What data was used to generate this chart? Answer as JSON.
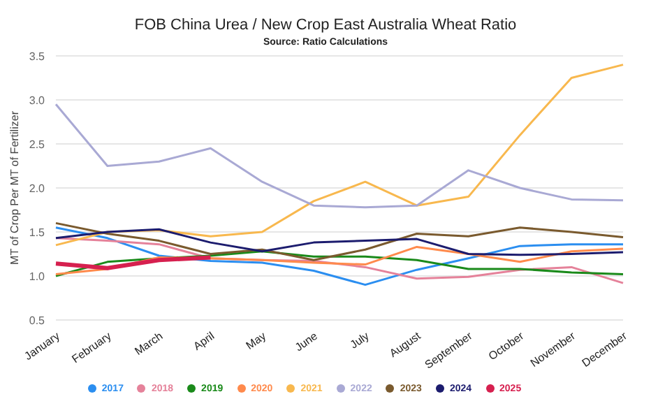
{
  "chart_data": {
    "type": "line",
    "title": "FOB China Urea / New Crop East Australia Wheat Ratio",
    "subtitle": "Source: Ratio Calculations",
    "ylabel": "MT of Crop Per MT of Fertilizer",
    "categories": [
      "January",
      "February",
      "March",
      "April",
      "May",
      "June",
      "July",
      "August",
      "September",
      "October",
      "November",
      "December"
    ],
    "series": [
      {
        "name": "2017",
        "color": "#2b8ef0",
        "values": [
          1.55,
          1.43,
          1.23,
          1.17,
          1.15,
          1.06,
          0.9,
          1.07,
          1.2,
          1.34,
          1.36,
          1.36
        ]
      },
      {
        "name": "2018",
        "color": "#e5829a",
        "values": [
          1.43,
          1.4,
          1.36,
          1.2,
          1.18,
          1.17,
          1.1,
          0.97,
          0.99,
          1.07,
          1.1,
          0.92
        ]
      },
      {
        "name": "2019",
        "color": "#1a8a1a",
        "values": [
          1.0,
          1.16,
          1.2,
          1.23,
          1.28,
          1.22,
          1.22,
          1.18,
          1.08,
          1.08,
          1.04,
          1.02
        ]
      },
      {
        "name": "2020",
        "color": "#ff8a4c",
        "values": [
          1.02,
          1.08,
          1.21,
          1.2,
          1.18,
          1.15,
          1.13,
          1.33,
          1.25,
          1.16,
          1.28,
          1.31
        ]
      },
      {
        "name": "2021",
        "color": "#f8b84e",
        "values": [
          1.35,
          1.5,
          1.52,
          1.45,
          1.5,
          1.85,
          2.07,
          1.8,
          1.9,
          2.6,
          3.25,
          3.4
        ]
      },
      {
        "name": "2022",
        "color": "#a9a9d4",
        "values": [
          2.95,
          2.25,
          2.3,
          2.45,
          2.07,
          1.8,
          1.78,
          1.8,
          2.2,
          2.0,
          1.87,
          1.86
        ]
      },
      {
        "name": "2023",
        "color": "#7a5a2e",
        "values": [
          1.6,
          1.48,
          1.4,
          1.25,
          1.3,
          1.18,
          1.3,
          1.48,
          1.45,
          1.55,
          1.5,
          1.44
        ]
      },
      {
        "name": "2024",
        "color": "#1c1c6e",
        "values": [
          1.43,
          1.5,
          1.53,
          1.38,
          1.28,
          1.38,
          1.4,
          1.42,
          1.25,
          1.24,
          1.25,
          1.27
        ]
      },
      {
        "name": "2025",
        "color": "#d6204f",
        "values": [
          1.14,
          1.09,
          1.18,
          1.21,
          null,
          null,
          null,
          null,
          null,
          null,
          null,
          null
        ]
      }
    ],
    "ylim": [
      0.5,
      3.5
    ],
    "yticks": [
      0.5,
      {
        "value": 1,
        "label": "1.0"
      },
      1.5,
      {
        "value": 2,
        "label": "2.0"
      },
      2.5,
      {
        "value": 3,
        "label": "3.0"
      },
      3.5
    ],
    "grid": "y",
    "legend": "bottom",
    "marker": "none",
    "line_style": "solid"
  }
}
